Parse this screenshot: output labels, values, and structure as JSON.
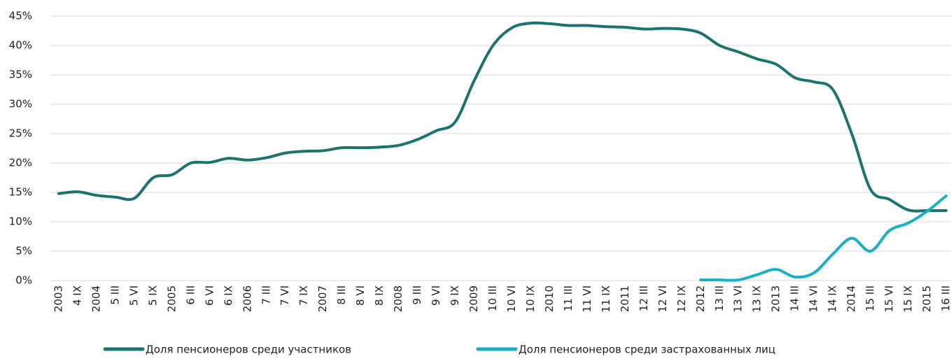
{
  "chart_data": {
    "type": "line",
    "categories": [
      "2003",
      "4 IX",
      "2004",
      "5 III",
      "5 VI",
      "5 IX",
      "2005",
      "6 III",
      "6 VI",
      "6 IX",
      "2006",
      "7 III",
      "7 VI",
      "7 IX",
      "2007",
      "8 III",
      "8 VI",
      "8 IX",
      "2008",
      "9 III",
      "9 VI",
      "9 IX",
      "2009",
      "10 III",
      "10 VI",
      "10 IX",
      "2010",
      "11 III",
      "11 VI",
      "11 IX",
      "2011",
      "12 III",
      "12 VI",
      "12 IX",
      "2012",
      "13 III",
      "13 VI",
      "13 IX",
      "2013",
      "14 III",
      "14 VI",
      "14 IX",
      "2014",
      "15 III",
      "15 VI",
      "15 IX",
      "2015",
      "16 III"
    ],
    "series": [
      {
        "name": "Доля пенсионеров среди участников",
        "color": "#1b7371",
        "values": [
          14.8,
          15.1,
          14.5,
          14.2,
          14.0,
          17.5,
          18.0,
          20.0,
          20.1,
          20.8,
          20.5,
          20.9,
          21.7,
          22.0,
          22.1,
          22.6,
          22.6,
          22.7,
          23.0,
          24.0,
          25.5,
          27.0,
          34.0,
          40.0,
          43.0,
          43.8,
          43.7,
          43.4,
          43.4,
          43.2,
          43.1,
          42.8,
          42.9,
          42.8,
          42.1,
          40.0,
          38.9,
          37.7,
          36.8,
          34.5,
          33.8,
          32.5,
          25.0,
          15.5,
          13.8,
          12.0,
          11.9,
          11.9
        ]
      },
      {
        "name": "Доля пенсионеров среди застрахованных лиц",
        "color": "#19b0c6",
        "values": [
          null,
          null,
          null,
          null,
          null,
          null,
          null,
          null,
          null,
          null,
          null,
          null,
          null,
          null,
          null,
          null,
          null,
          null,
          null,
          null,
          null,
          null,
          null,
          null,
          null,
          null,
          null,
          null,
          null,
          null,
          null,
          null,
          null,
          null,
          0.1,
          0.1,
          0.1,
          1.0,
          1.9,
          0.6,
          1.3,
          4.5,
          7.2,
          5.0,
          8.5,
          9.8,
          11.8,
          14.4
        ]
      }
    ],
    "ylim": [
      0,
      45
    ],
    "yticks": [
      {
        "value": 0,
        "label": "0%"
      },
      {
        "value": 5,
        "label": "5%"
      },
      {
        "value": 10,
        "label": "10%"
      },
      {
        "value": 15,
        "label": "15%"
      },
      {
        "value": 20,
        "label": "20%"
      },
      {
        "value": 25,
        "label": "25%"
      },
      {
        "value": 30,
        "label": "30%"
      },
      {
        "value": 35,
        "label": "35%"
      },
      {
        "value": 40,
        "label": "40%"
      },
      {
        "value": 45,
        "label": "45%"
      }
    ],
    "grid": true,
    "legend": "bottom"
  }
}
